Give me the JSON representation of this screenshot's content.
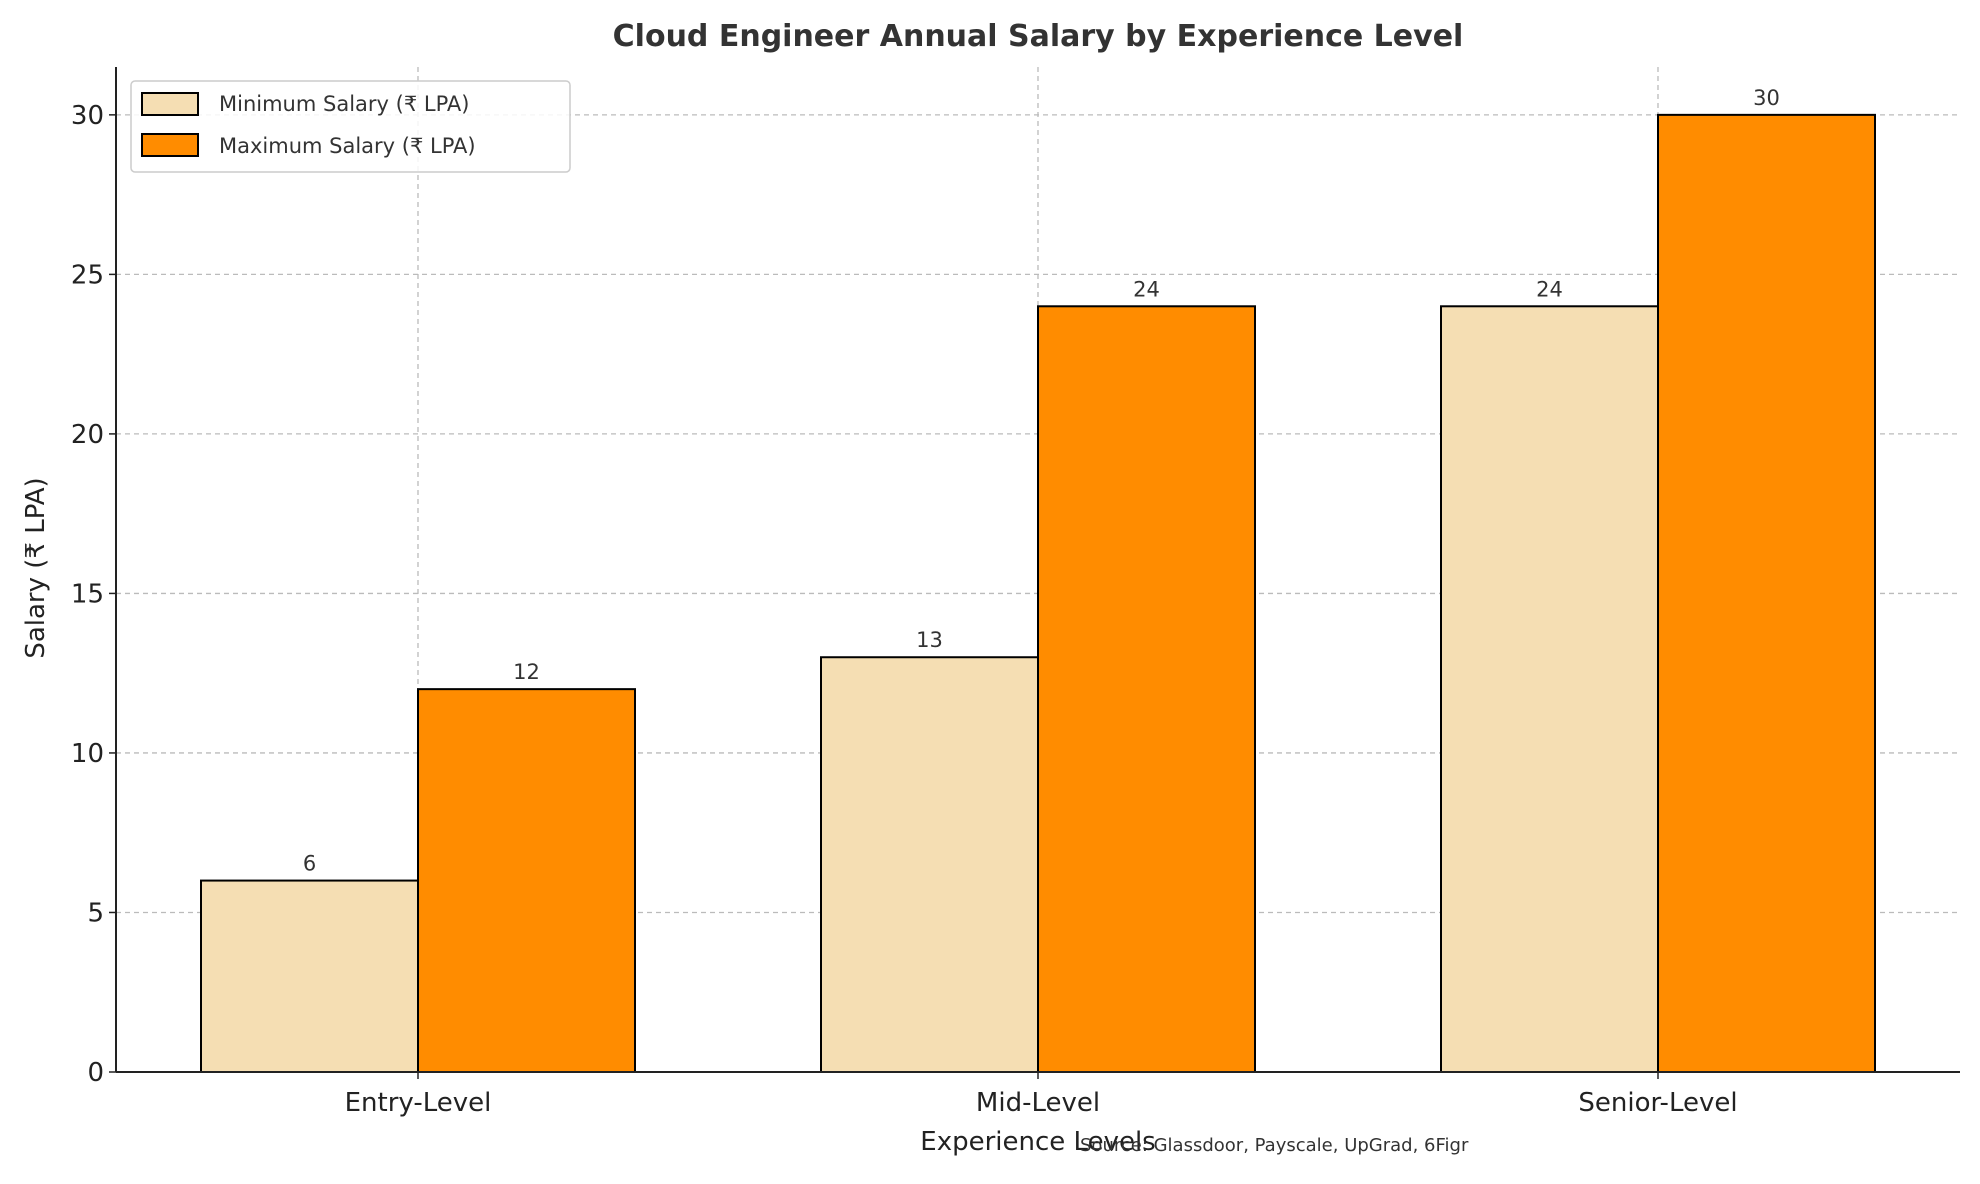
{
  "chart_data": {
    "type": "bar",
    "title": "Cloud Engineer Annual Salary by Experience Level",
    "xlabel": "Experience Levels",
    "ylabel": "Salary (₹ LPA)",
    "categories": [
      "Entry-Level",
      "Mid-Level",
      "Senior-Level"
    ],
    "series": [
      {
        "name": "Minimum Salary (₹ LPA)",
        "values": [
          6,
          13,
          24
        ],
        "color": "#F5DEB3"
      },
      {
        "name": "Maximum Salary (₹ LPA)",
        "values": [
          12,
          24,
          30
        ],
        "color": "#FF8C00"
      }
    ],
    "ylim": [
      0,
      31.5
    ],
    "yticks": [
      0,
      5,
      10,
      15,
      20,
      25,
      30
    ],
    "grid": true,
    "legend_position": "top-left",
    "annotation": "Source: Glassdoor, Payscale, UpGrad, 6Figr"
  }
}
